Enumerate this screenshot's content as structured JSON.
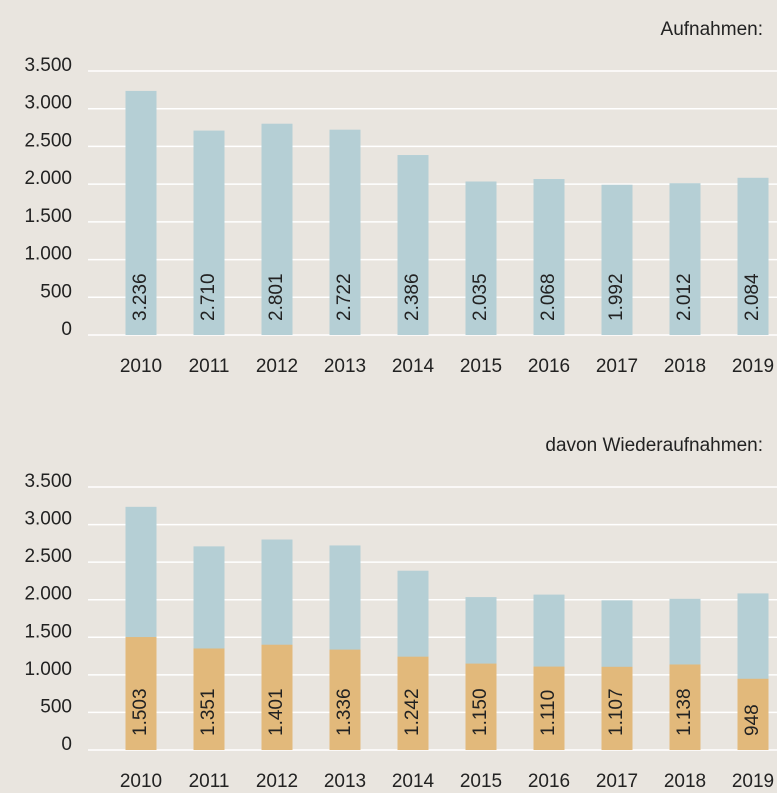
{
  "chart_data": [
    {
      "type": "bar",
      "title": "Aufnahmen:",
      "categories": [
        "2010",
        "2011",
        "2012",
        "2013",
        "2014",
        "2015",
        "2016",
        "2017",
        "2018",
        "2019"
      ],
      "series": [
        {
          "color": "#b5cfd5",
          "values": [
            3236,
            2710,
            2801,
            2722,
            2386,
            2035,
            2068,
            1992,
            2012,
            2084
          ],
          "value_labels": [
            "3.236",
            "2.710",
            "2.801",
            "2.722",
            "2.386",
            "2.035",
            "2.068",
            "1.992",
            "2.012",
            "2.084"
          ]
        }
      ],
      "ylim": [
        0,
        3500
      ],
      "yticks": [
        0,
        500,
        {
          "value": 1000,
          "label": "1.000"
        },
        {
          "value": 1500,
          "label": "1.500"
        },
        {
          "value": 2000,
          "label": "2.000"
        },
        {
          "value": 2500,
          "label": "2.500"
        },
        {
          "value": 3000,
          "label": "3.000"
        },
        {
          "value": 3500,
          "label": "3.500"
        }
      ],
      "grid": true
    },
    {
      "type": "bar",
      "title": "davon Wiederaufnahmen:",
      "categories": [
        "2010",
        "2011",
        "2012",
        "2013",
        "2014",
        "2015",
        "2016",
        "2017",
        "2018",
        "2019"
      ],
      "series": [
        {
          "color": "#b5cfd5",
          "values": [
            3236,
            2710,
            2801,
            2722,
            2386,
            2035,
            2068,
            1992,
            2012,
            2084
          ]
        },
        {
          "color": "#e2b97b",
          "values": [
            1503,
            1351,
            1401,
            1336,
            1242,
            1150,
            1110,
            1107,
            1138,
            948
          ],
          "value_labels": [
            "1.503",
            "1.351",
            "1.401",
            "1.336",
            "1.242",
            "1.150",
            "1.110",
            "1.107",
            "1.138",
            "948"
          ]
        }
      ],
      "ylim": [
        0,
        3500
      ],
      "yticks": [
        0,
        500,
        {
          "value": 1000,
          "label": "1.000"
        },
        {
          "value": 1500,
          "label": "1.500"
        },
        {
          "value": 2000,
          "label": "2.000"
        },
        {
          "value": 2500,
          "label": "2.500"
        },
        {
          "value": 3000,
          "label": "3.000"
        },
        {
          "value": 3500,
          "label": "3.500"
        }
      ],
      "grid": true
    }
  ]
}
